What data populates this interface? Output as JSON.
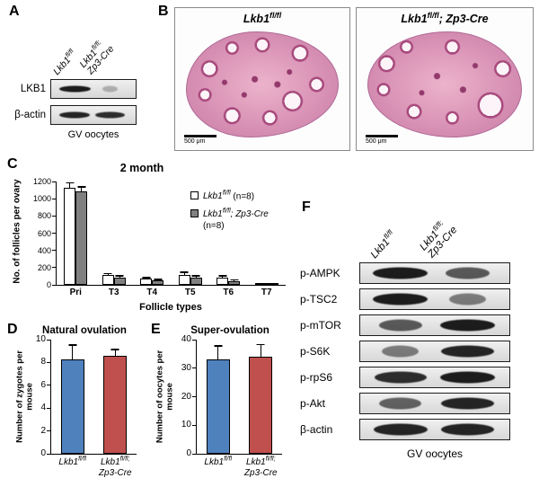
{
  "genotype": {
    "control": {
      "base": "Lkb1",
      "sup": "fl/fl",
      "rest": ""
    },
    "mutant": {
      "base": "Lkb1",
      "sup": "fl/fl",
      "rest": "; Zp3-Cre"
    }
  },
  "panelA": {
    "label": "A",
    "caption": "GV oocytes",
    "band_rows": [
      {
        "label": "LKB1",
        "bands": [
          0.95,
          0.1
        ]
      },
      {
        "label": "β-actin",
        "bands": [
          0.9,
          0.85
        ]
      }
    ]
  },
  "panelB": {
    "label": "B",
    "scalebar_text": "500 μm"
  },
  "panelC": {
    "label": "C",
    "legend": [
      {
        "n_text": "(n=8)",
        "swatch": "#ffffff",
        "geno": "control"
      },
      {
        "n_text": "(n=8)",
        "swatch": "#808080",
        "geno": "mutant"
      }
    ]
  },
  "panelD": {
    "label": "D"
  },
  "panelE": {
    "label": "E"
  },
  "panelF": {
    "label": "F",
    "caption": "GV oocytes",
    "band_rows": [
      {
        "label": "p-AMPK",
        "bands": [
          0.95,
          0.6
        ]
      },
      {
        "label": "p-TSC2",
        "bands": [
          0.95,
          0.4
        ]
      },
      {
        "label": "p-mTOR",
        "bands": [
          0.6,
          0.95
        ]
      },
      {
        "label": "p-S6K",
        "bands": [
          0.4,
          0.9
        ]
      },
      {
        "label": "p-rpS6",
        "bands": [
          0.85,
          0.95
        ]
      },
      {
        "label": "p-Akt",
        "bands": [
          0.55,
          0.9
        ]
      },
      {
        "label": "β-actin",
        "bands": [
          0.9,
          0.9
        ]
      }
    ]
  },
  "chart_data": [
    {
      "id": "panelC",
      "type": "bar",
      "title": "2 month",
      "xlabel": "Follicle types",
      "ylabel": "No. of follicles per ovary",
      "categories": [
        "Pri",
        "T3",
        "T4",
        "T5",
        "T6",
        "T7"
      ],
      "ylim": [
        0,
        1200
      ],
      "yticks": [
        0,
        200,
        400,
        600,
        800,
        1000,
        1200
      ],
      "grid": false,
      "legend_position": "upper-right",
      "series": [
        {
          "name": "Lkb1 fl/fl (n=8)",
          "color": "#ffffff",
          "values": [
            1130,
            110,
            70,
            120,
            80,
            15
          ],
          "errors": [
            60,
            30,
            20,
            35,
            30,
            10
          ]
        },
        {
          "name": "Lkb1 fl/fl; Zp3-Cre (n=8)",
          "color": "#808080",
          "values": [
            1090,
            85,
            55,
            85,
            45,
            8
          ],
          "errors": [
            55,
            25,
            15,
            25,
            20,
            6
          ]
        }
      ]
    },
    {
      "id": "panelD",
      "type": "bar",
      "title": "Natural ovulation",
      "ylabel": "Number of zygotes per mouse",
      "categories": [
        "Lkb1 fl/fl",
        "Lkb1 fl/fl; Zp3-Cre"
      ],
      "category_keys": [
        "control",
        "mutant"
      ],
      "ylim": [
        0,
        10
      ],
      "yticks": [
        0,
        2,
        4,
        6,
        8,
        10
      ],
      "grid": false,
      "values": [
        8.3,
        8.6
      ],
      "errors": [
        1.3,
        0.6
      ],
      "colors": [
        "#4f81bd",
        "#c0504d"
      ]
    },
    {
      "id": "panelE",
      "type": "bar",
      "title": "Super-ovulation",
      "ylabel": "Number of oocytes per mouse",
      "categories": [
        "Lkb1 fl/fl",
        "Lkb1 fl/fl; Zp3-Cre"
      ],
      "category_keys": [
        "control",
        "mutant"
      ],
      "ylim": [
        0,
        40
      ],
      "yticks": [
        0,
        10,
        20,
        30,
        40
      ],
      "grid": false,
      "values": [
        33,
        34
      ],
      "errors": [
        5,
        4.5
      ],
      "colors": [
        "#4f81bd",
        "#c0504d"
      ]
    }
  ]
}
